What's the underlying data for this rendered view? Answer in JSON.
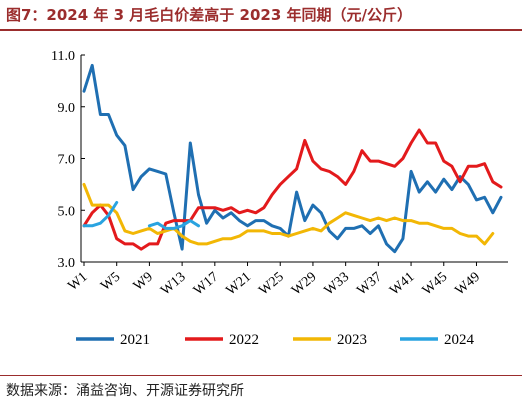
{
  "header": {
    "title": "图7：2024 年 3 月毛白价差高于 2023 年同期（元/公斤）"
  },
  "footer": {
    "source": "数据来源：涌益咨询、开源证券研究所"
  },
  "chart_data": {
    "type": "line",
    "title": "图7：2024 年 3 月毛白价差高于 2023 年同期（元/公斤）",
    "xlabel": "",
    "ylabel": "",
    "ylim": [
      3.0,
      11.0
    ],
    "yticks": [
      "3.0",
      "5.0",
      "7.0",
      "9.0",
      "11.0"
    ],
    "x": [
      "W1",
      "W2",
      "W3",
      "W4",
      "W5",
      "W6",
      "W7",
      "W8",
      "W9",
      "W10",
      "W11",
      "W12",
      "W13",
      "W14",
      "W15",
      "W16",
      "W17",
      "W18",
      "W19",
      "W20",
      "W21",
      "W22",
      "W23",
      "W24",
      "W25",
      "W26",
      "W27",
      "W28",
      "W29",
      "W30",
      "W31",
      "W32",
      "W33",
      "W34",
      "W35",
      "W36",
      "W37",
      "W38",
      "W39",
      "W40",
      "W41",
      "W42",
      "W43",
      "W44",
      "W45",
      "W46",
      "W47",
      "W48",
      "W49",
      "W50",
      "W51",
      "W52"
    ],
    "xticks": [
      "W1",
      "W5",
      "W9",
      "W13",
      "W17",
      "W21",
      "W25",
      "W29",
      "W33",
      "W37",
      "W41",
      "W45",
      "W49"
    ],
    "grid": false,
    "legend_position": "bottom",
    "series": [
      {
        "name": "2021",
        "color": "#1f6fb2",
        "values": [
          9.6,
          10.6,
          8.7,
          8.7,
          7.9,
          7.5,
          5.8,
          6.3,
          6.6,
          6.5,
          6.4,
          4.9,
          3.5,
          7.6,
          5.6,
          4.5,
          5.0,
          4.7,
          4.9,
          4.6,
          4.4,
          4.6,
          4.6,
          4.4,
          4.3,
          4.0,
          5.7,
          4.6,
          5.2,
          4.9,
          4.2,
          3.9,
          4.3,
          4.3,
          4.4,
          4.1,
          4.4,
          3.7,
          3.4,
          3.9,
          6.5,
          5.7,
          6.1,
          5.7,
          6.2,
          5.8,
          6.3,
          6.0,
          5.4,
          5.5,
          4.9,
          5.5
        ]
      },
      {
        "name": "2022",
        "color": "#e31a1c",
        "values": [
          4.4,
          4.9,
          5.2,
          4.8,
          3.9,
          3.7,
          3.7,
          3.5,
          3.7,
          3.7,
          4.5,
          4.6,
          4.6,
          4.6,
          5.1,
          5.1,
          5.1,
          5.0,
          5.1,
          4.9,
          5.0,
          4.9,
          5.1,
          5.6,
          6.0,
          6.3,
          6.6,
          7.7,
          6.9,
          6.6,
          6.5,
          6.3,
          6.0,
          6.5,
          7.3,
          6.9,
          6.9,
          6.8,
          6.7,
          7.0,
          7.6,
          8.1,
          7.6,
          7.6,
          6.9,
          6.7,
          6.1,
          6.7,
          6.7,
          6.8,
          6.1,
          5.9
        ]
      },
      {
        "name": "2023",
        "color": "#f2b705",
        "values": [
          6.0,
          5.2,
          5.2,
          5.2,
          4.9,
          4.2,
          4.1,
          4.2,
          4.3,
          4.1,
          4.2,
          4.3,
          4.0,
          3.8,
          3.7,
          3.7,
          3.8,
          3.9,
          3.9,
          4.0,
          4.2,
          4.2,
          4.2,
          4.1,
          4.1,
          4.0,
          4.1,
          4.2,
          4.3,
          4.2,
          4.5,
          4.7,
          4.9,
          4.8,
          4.7,
          4.6,
          4.7,
          4.6,
          4.7,
          4.6,
          4.6,
          4.5,
          4.5,
          4.4,
          4.3,
          4.3,
          4.1,
          4.0,
          4.0,
          3.7,
          4.1,
          null
        ]
      },
      {
        "name": "2024",
        "color": "#29a3e0",
        "values": [
          4.4,
          4.4,
          4.5,
          4.8,
          5.3,
          null,
          null,
          null,
          4.4,
          4.5,
          4.3,
          4.3,
          4.4,
          4.6,
          4.4,
          null,
          null,
          null,
          null,
          null,
          null,
          null,
          null,
          null,
          null,
          null,
          null,
          null,
          null,
          null,
          null,
          null,
          null,
          null,
          null,
          null,
          null,
          null,
          null,
          null,
          null,
          null,
          null,
          null,
          null,
          null,
          null,
          null,
          null,
          null,
          null,
          null
        ]
      }
    ]
  }
}
